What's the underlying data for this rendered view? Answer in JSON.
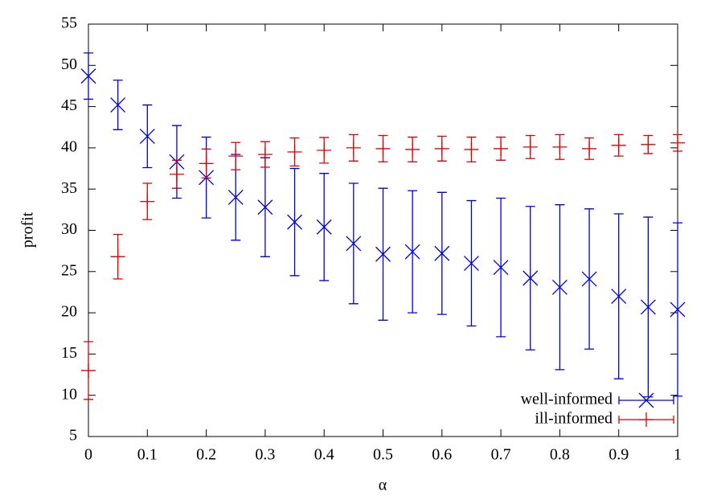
{
  "chart_data": {
    "type": "errorbar",
    "x_label": "α",
    "y_label": "profit",
    "x": [
      0,
      0.05,
      0.1,
      0.15,
      0.2,
      0.25,
      0.3,
      0.35,
      0.4,
      0.45,
      0.5,
      0.55,
      0.6,
      0.65,
      0.7,
      0.75,
      0.8,
      0.85,
      0.9,
      0.95,
      1
    ],
    "xlim": [
      0,
      1
    ],
    "xticks": [
      0,
      0.1,
      0.2,
      0.3,
      0.4,
      0.5,
      0.6,
      0.7,
      0.8,
      0.9,
      1
    ],
    "ylim": [
      5,
      55
    ],
    "yticks": [
      5,
      10,
      15,
      20,
      25,
      30,
      35,
      40,
      45,
      50,
      55
    ],
    "grid": false,
    "legend": "bottom right",
    "series": [
      {
        "name": "well-informed",
        "color": "#0000dd",
        "marker": "x",
        "values": [
          48.7,
          45.2,
          41.4,
          38.3,
          36.4,
          34.0,
          32.8,
          31.0,
          30.4,
          28.4,
          27.1,
          27.4,
          27.2,
          26.0,
          25.5,
          24.2,
          23.1,
          24.1,
          22.0,
          20.7,
          20.4
        ],
        "errors": [
          2.8,
          3.0,
          3.8,
          4.4,
          4.9,
          5.2,
          6.0,
          6.5,
          6.5,
          7.3,
          8.0,
          7.4,
          7.4,
          7.6,
          8.4,
          8.7,
          10.0,
          8.5,
          10.0,
          10.9,
          10.5
        ]
      },
      {
        "name": "ill-informed",
        "color": "#dd0000",
        "marker": "plus",
        "values": [
          13.0,
          26.8,
          33.5,
          36.8,
          38.1,
          39.0,
          39.2,
          39.5,
          39.7,
          40.0,
          39.9,
          39.8,
          39.9,
          39.8,
          39.9,
          40.1,
          40.1,
          39.9,
          40.3,
          40.4,
          40.6
        ],
        "errors": [
          3.5,
          2.7,
          2.2,
          1.7,
          1.75,
          1.65,
          1.55,
          1.7,
          1.55,
          1.6,
          1.6,
          1.5,
          1.5,
          1.5,
          1.4,
          1.4,
          1.5,
          1.3,
          1.3,
          1.1,
          1.0
        ]
      }
    ]
  }
}
